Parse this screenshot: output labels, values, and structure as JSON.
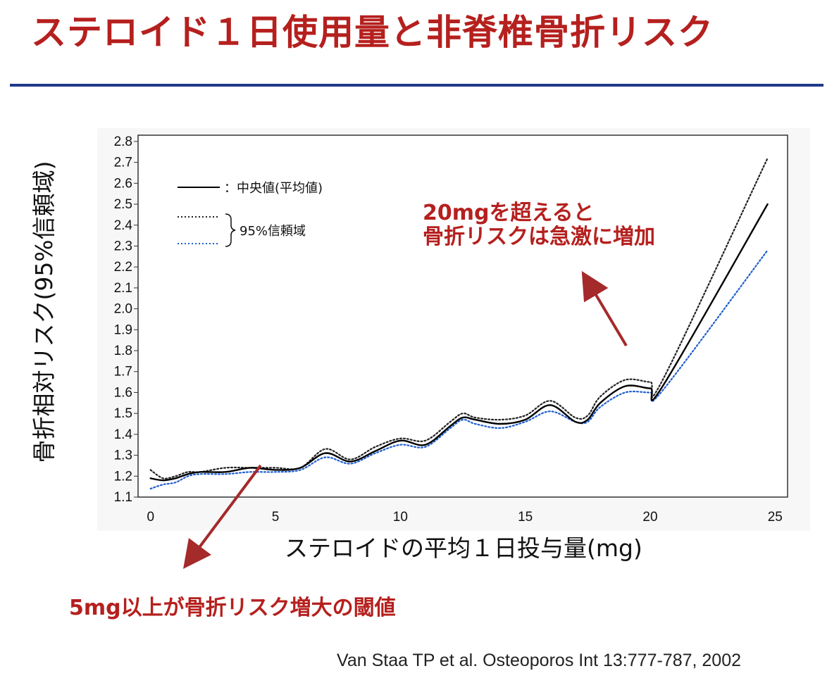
{
  "slide": {
    "title": "ステロイド１日使用量と非脊椎骨折リスク",
    "annotation_high": [
      "20mgを超えると",
      "骨折リスクは急激に増加"
    ],
    "annotation_low": "5mg以上が骨折リスク増大の閾値",
    "citation": "Van Staa TP et al. Osteoporos Int 13:777-787, 2002"
  },
  "colors": {
    "title": "#b5201e",
    "rule": "#1f3a8a",
    "median": "#000000",
    "upper_ci": "#222222",
    "lower_ci": "#1f5fd0",
    "arrow": "#a52a2a"
  },
  "chart_data": {
    "type": "line",
    "xlabel": "ステロイドの平均１日投与量(mg)",
    "ylabel": "骨折相対リスク(95%信頼域)",
    "xlim": [
      -0.5,
      25.5
    ],
    "ylim": [
      1.1,
      2.83
    ],
    "x_ticks": [
      0,
      5,
      10,
      15,
      20,
      25
    ],
    "y_ticks": [
      "1.1",
      "1.2",
      "1.3",
      "1.4",
      "1.5",
      "1.6",
      "1.7",
      "1.8",
      "1.9",
      "2.0",
      "2.1",
      "2.2",
      "2.3",
      "2.4",
      "2.5",
      "2.6",
      "2.7",
      "2.8"
    ],
    "grid": false,
    "legend": {
      "position": "top-left",
      "median_label": "：中央値(平均値)",
      "ci_label": "95%信頼域"
    },
    "x": [
      0,
      0.5,
      1,
      1.5,
      2,
      3,
      4,
      5,
      6,
      7,
      8,
      9,
      10,
      11,
      12,
      12.5,
      13,
      14,
      15,
      16,
      17,
      17.5,
      18,
      19,
      20,
      20.5,
      24.7
    ],
    "series": [
      {
        "key": "median",
        "values": [
          1.19,
          1.18,
          1.19,
          1.21,
          1.22,
          1.22,
          1.24,
          1.23,
          1.24,
          1.31,
          1.27,
          1.32,
          1.37,
          1.35,
          1.44,
          1.48,
          1.47,
          1.45,
          1.47,
          1.54,
          1.46,
          1.47,
          1.55,
          1.63,
          1.62,
          1.63,
          2.5
        ]
      },
      {
        "key": "upper",
        "values": [
          1.23,
          1.19,
          1.2,
          1.22,
          1.22,
          1.24,
          1.24,
          1.24,
          1.24,
          1.33,
          1.28,
          1.34,
          1.38,
          1.37,
          1.46,
          1.5,
          1.48,
          1.47,
          1.49,
          1.56,
          1.48,
          1.49,
          1.58,
          1.66,
          1.65,
          1.66,
          2.72
        ]
      },
      {
        "key": "lower",
        "values": [
          1.14,
          1.16,
          1.17,
          1.2,
          1.21,
          1.21,
          1.22,
          1.22,
          1.23,
          1.29,
          1.26,
          1.31,
          1.35,
          1.34,
          1.43,
          1.47,
          1.45,
          1.43,
          1.46,
          1.51,
          1.46,
          1.46,
          1.53,
          1.6,
          1.6,
          1.61,
          2.28
        ]
      }
    ]
  }
}
